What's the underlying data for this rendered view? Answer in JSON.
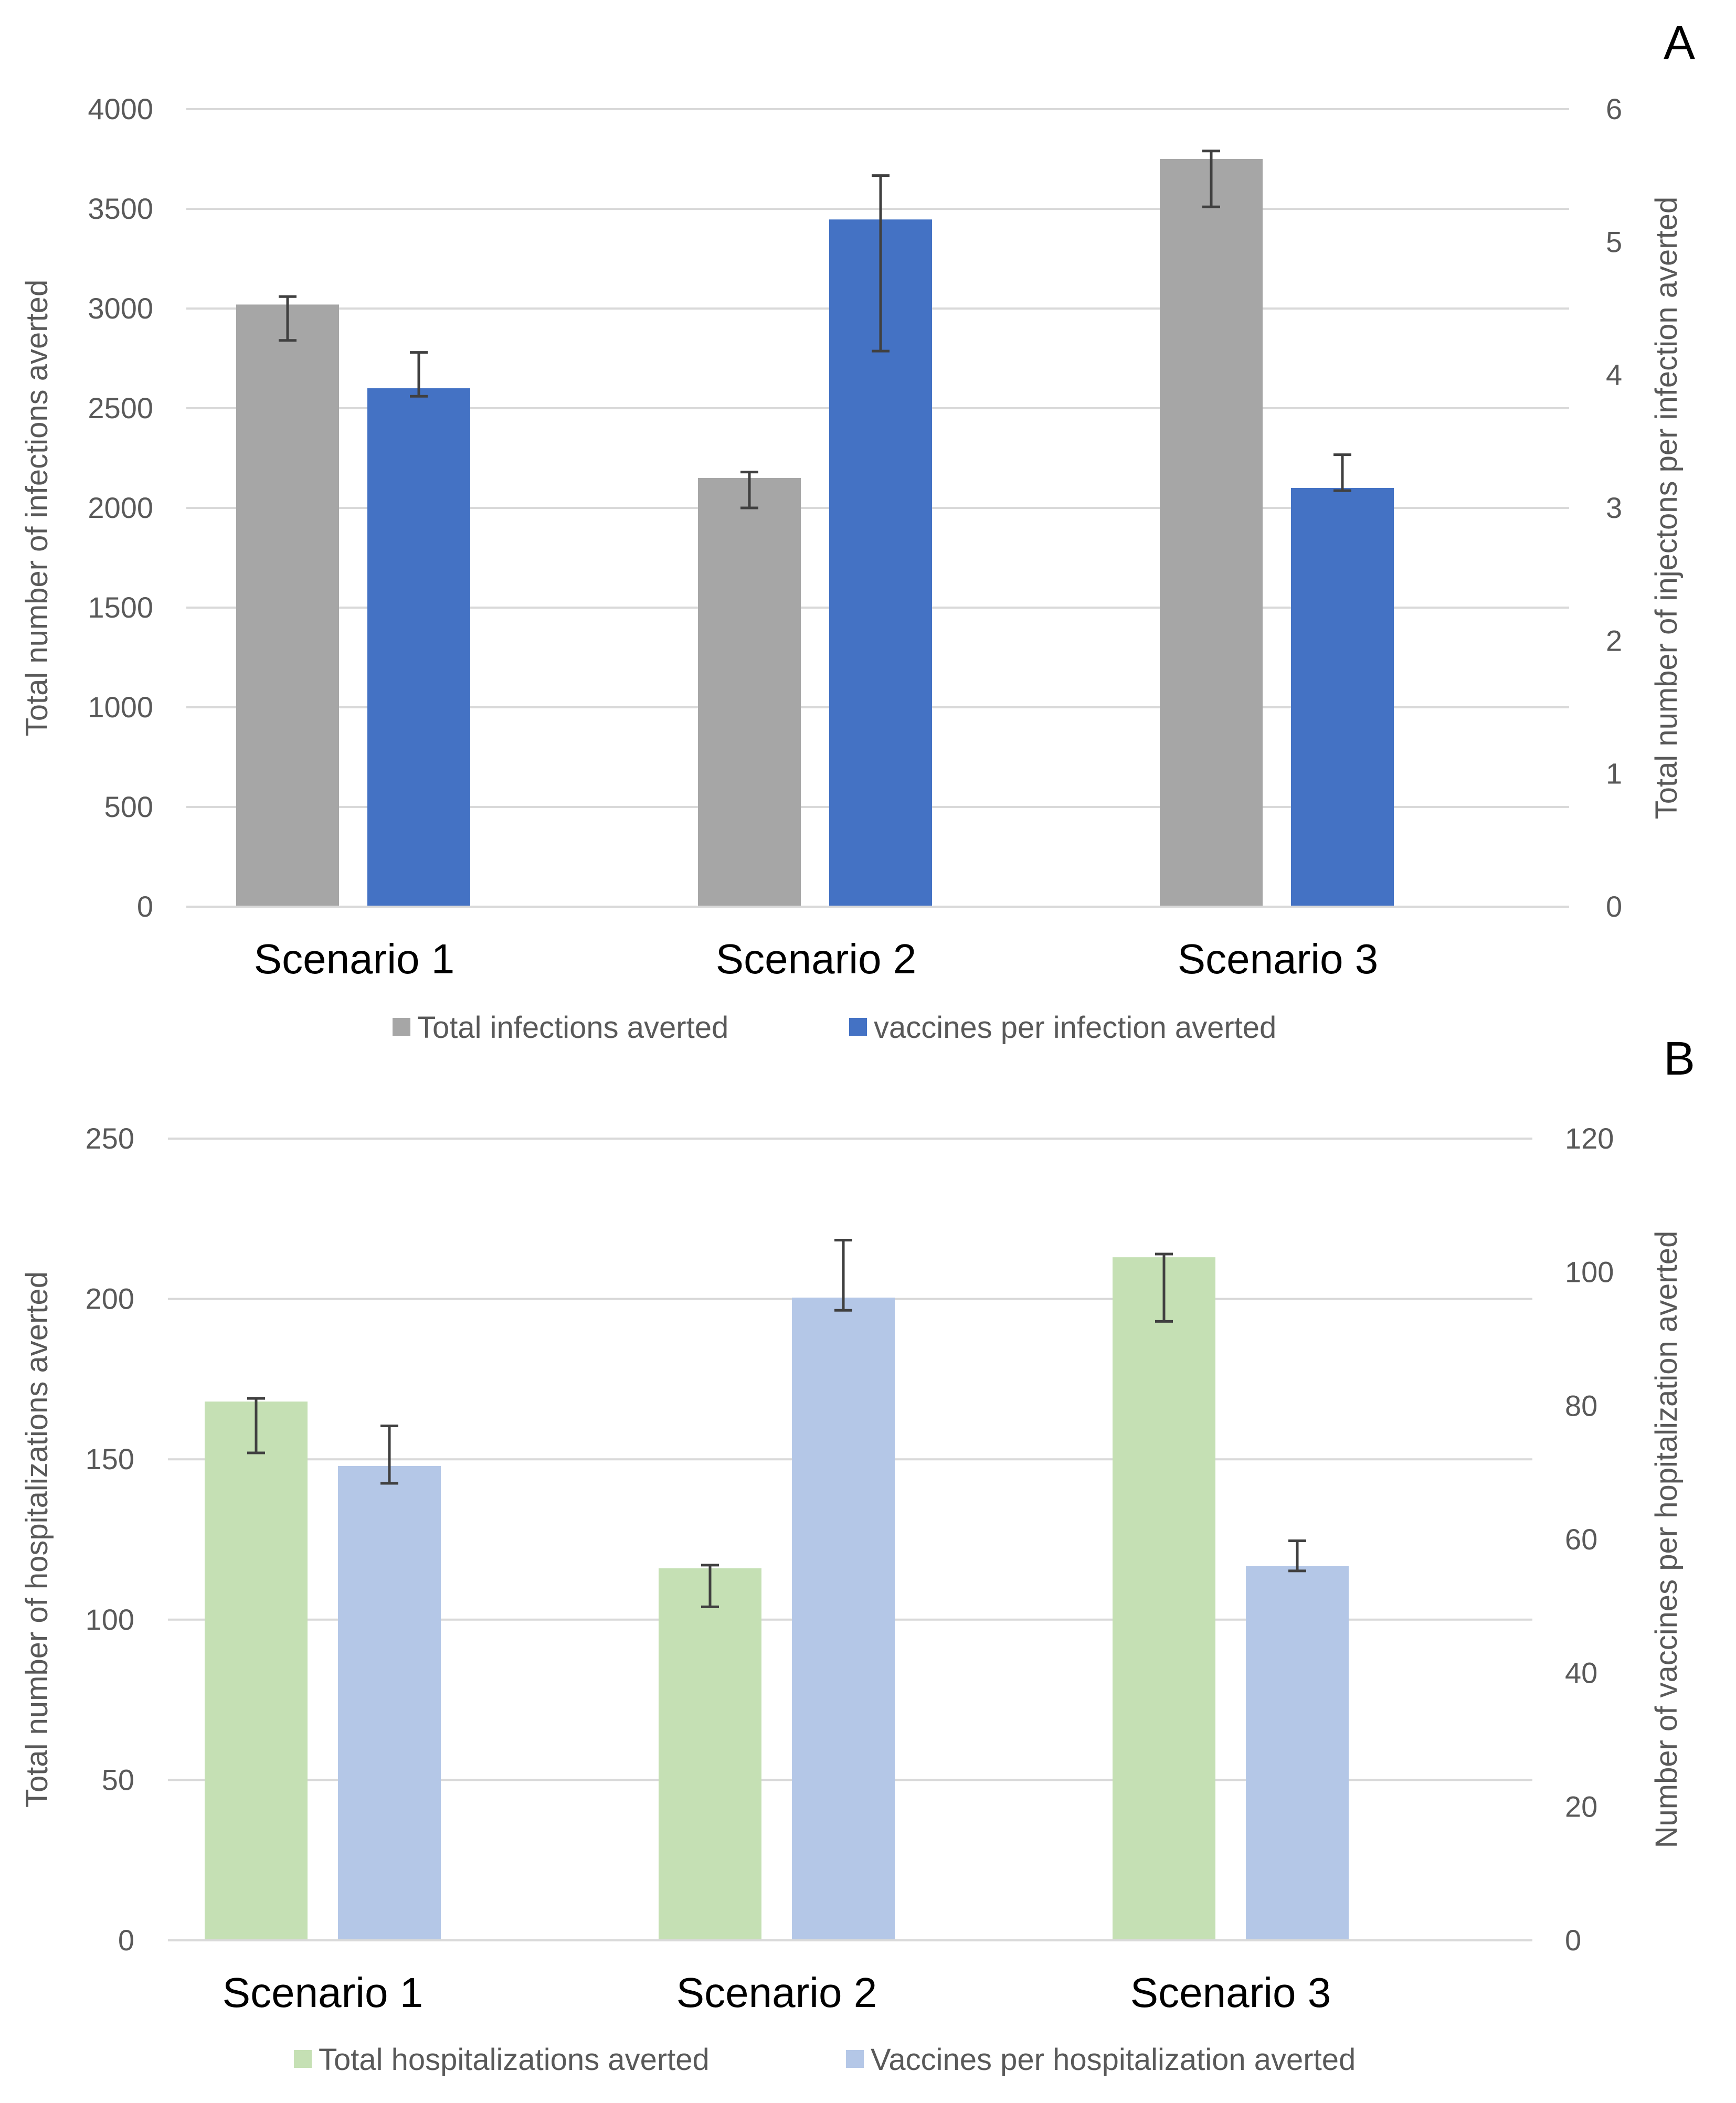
{
  "chart_data": [
    {
      "panel": "A",
      "type": "bar",
      "categories": [
        "Scenario 1",
        "Scenario 2",
        "Scenario 3"
      ],
      "ylabel": "Total number of infections averted",
      "y2label": "Total number of injectons per infection averted",
      "ylim": [
        0,
        4000
      ],
      "y2lim": [
        0,
        6
      ],
      "yticks": [
        "0",
        "500",
        "1000",
        "1500",
        "2000",
        "2500",
        "3000",
        "3500",
        "4000"
      ],
      "y2ticks": [
        "0",
        "1",
        "2",
        "3",
        "4",
        "5",
        "6"
      ],
      "grid": true,
      "legend_position": "bottom",
      "series": [
        {
          "name": "Total infections averted",
          "axis": "left",
          "color": "#a6a6a6",
          "values": [
            3020,
            2150,
            3750
          ],
          "error_low": [
            2840,
            2000,
            3510
          ],
          "error_high": [
            3060,
            2180,
            3790
          ]
        },
        {
          "name": "vaccines per infection averted",
          "axis": "right",
          "color": "#4472c4",
          "values": [
            3.9,
            5.17,
            3.15
          ],
          "error_low": [
            3.84,
            4.18,
            3.13
          ],
          "error_high": [
            4.17,
            5.5,
            3.4
          ]
        }
      ]
    },
    {
      "panel": "B",
      "type": "bar",
      "categories": [
        "Scenario 1",
        "Scenario 2",
        "Scenario 3"
      ],
      "ylabel": "Total number of hospitalizations averted",
      "y2label": "Number of vaccines per hopitalization averted",
      "ylim": [
        0,
        250
      ],
      "y2lim": [
        0,
        120
      ],
      "yticks": [
        "0",
        "50",
        "100",
        "150",
        "200",
        "250"
      ],
      "y2ticks": [
        "0",
        "20",
        "40",
        "60",
        "80",
        "100",
        "120"
      ],
      "grid": true,
      "legend_position": "bottom",
      "series": [
        {
          "name": "Total hospitalizations averted",
          "axis": "left",
          "color": "#c5e0b4",
          "values": [
            168,
            116,
            213
          ],
          "error_low": [
            152,
            104,
            193
          ],
          "error_high": [
            169,
            117,
            214
          ]
        },
        {
          "name": "Vaccines per hospitalization averted",
          "axis": "right",
          "color": "#b4c7e7",
          "values": [
            71,
            96.2,
            56
          ],
          "error_low": [
            68.4,
            94.3,
            55.3
          ],
          "error_high": [
            77,
            104.8,
            59.8
          ]
        }
      ]
    }
  ]
}
